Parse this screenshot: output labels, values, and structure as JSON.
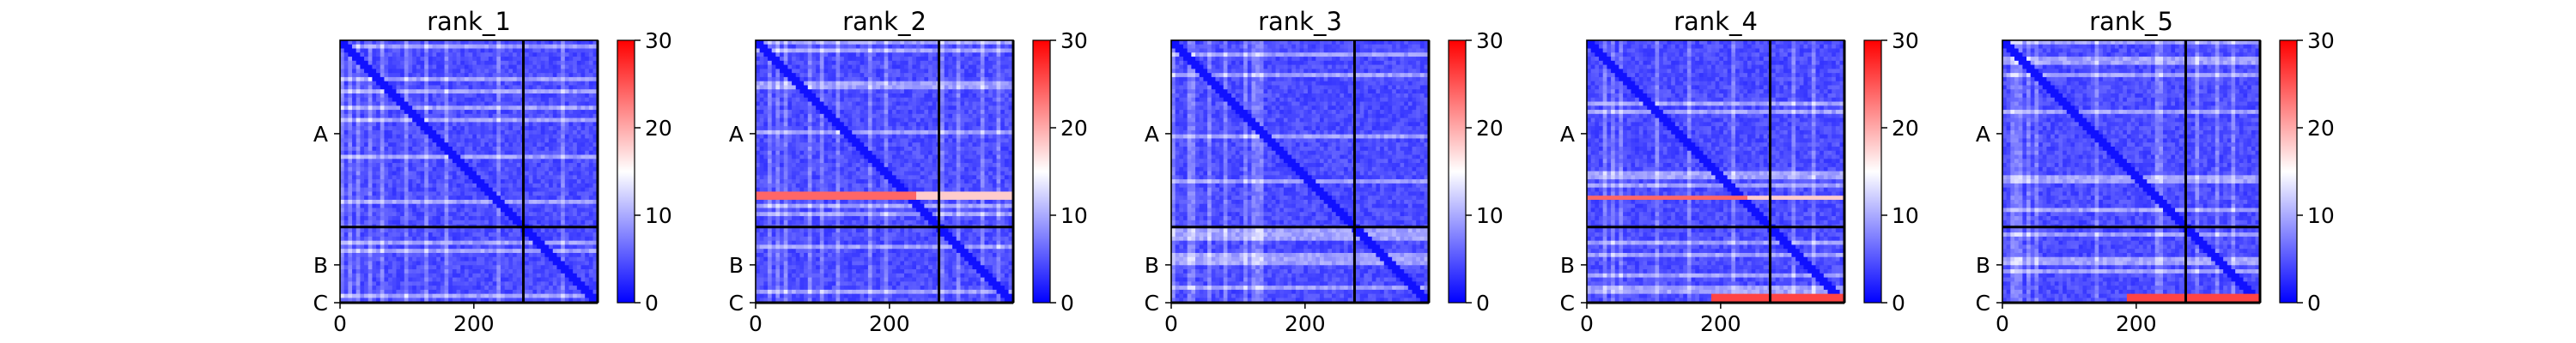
{
  "chart_data": [
    {
      "type": "heatmap",
      "title": "rank_1",
      "chain_labels": [
        "A",
        "B",
        "C"
      ],
      "chain_boundaries": [
        274,
        385
      ],
      "x_ticks": [
        0,
        200
      ],
      "xlim": [
        0,
        385
      ],
      "colorbar": {
        "min": 0,
        "max": 30,
        "ticks": [
          0,
          10,
          20,
          30
        ],
        "colors": [
          "#0000ff",
          "#ffffff",
          "#ff0000"
        ]
      },
      "hot_rows": [],
      "hot_band_C": false
    },
    {
      "type": "heatmap",
      "title": "rank_2",
      "chain_labels": [
        "A",
        "B",
        "C"
      ],
      "chain_boundaries": [
        274,
        385
      ],
      "x_ticks": [
        0,
        200
      ],
      "xlim": [
        0,
        385
      ],
      "colorbar": {
        "min": 0,
        "max": 30,
        "ticks": [
          0,
          10,
          20,
          30
        ],
        "colors": [
          "#0000ff",
          "#ffffff",
          "#ff0000"
        ]
      },
      "hot_rows": [
        224
      ],
      "hot_band_C": false
    },
    {
      "type": "heatmap",
      "title": "rank_3",
      "chain_labels": [
        "A",
        "B",
        "C"
      ],
      "chain_boundaries": [
        274,
        385
      ],
      "x_ticks": [
        0,
        200
      ],
      "xlim": [
        0,
        385
      ],
      "colorbar": {
        "min": 0,
        "max": 30,
        "ticks": [
          0,
          10,
          20,
          30
        ],
        "colors": [
          "#0000ff",
          "#ffffff",
          "#ff0000"
        ]
      },
      "hot_rows": [],
      "hot_band_C": false
    },
    {
      "type": "heatmap",
      "title": "rank_4",
      "chain_labels": [
        "A",
        "B",
        "C"
      ],
      "chain_boundaries": [
        274,
        385
      ],
      "x_ticks": [
        0,
        200
      ],
      "xlim": [
        0,
        385
      ],
      "colorbar": {
        "min": 0,
        "max": 30,
        "ticks": [
          0,
          10,
          20,
          30
        ],
        "colors": [
          "#0000ff",
          "#ffffff",
          "#ff0000"
        ]
      },
      "hot_rows": [
        228
      ],
      "hot_band_C": true
    },
    {
      "type": "heatmap",
      "title": "rank_5",
      "chain_labels": [
        "A",
        "B",
        "C"
      ],
      "chain_boundaries": [
        274,
        385
      ],
      "x_ticks": [
        0,
        200
      ],
      "xlim": [
        0,
        385
      ],
      "colorbar": {
        "min": 0,
        "max": 30,
        "ticks": [
          0,
          10,
          20,
          30
        ],
        "colors": [
          "#0000ff",
          "#ffffff",
          "#ff0000"
        ]
      },
      "hot_rows": [],
      "hot_band_C": true
    }
  ]
}
